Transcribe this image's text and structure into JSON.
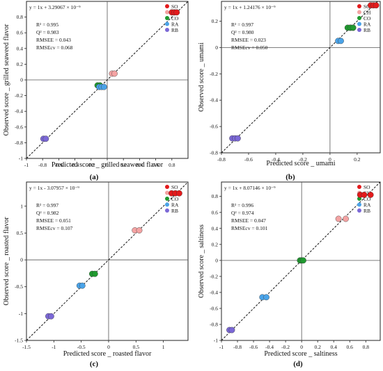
{
  "legend_labels": [
    "SO",
    "CH",
    "CO",
    "RA",
    "RB"
  ],
  "colors": {
    "SO": "#e31a1c",
    "CH": "#f4a3a3",
    "CO": "#1f9a2f",
    "RA": "#4aa3e8",
    "RB": "#7b68d6"
  },
  "chart_data": [
    {
      "type": "scatter",
      "panel_label": "(a)",
      "equation": "y = 1x + 3.29067 × 10⁻⁹",
      "stats": [
        "R² = 0.995",
        "Q² = 0.983",
        "RMSEE = 0.043",
        "RMSEcv = 0.068"
      ],
      "xlabel": "Predicted score _ grilled seaweed flavor",
      "ylabel": "Observed score _ grilled seaweed flavor",
      "xlim": [
        -1.0,
        1.0
      ],
      "ylim": [
        -1.0,
        1.0
      ],
      "xticks": [
        -1.0,
        -0.8,
        -0.6,
        -0.4,
        -0.2,
        0.0,
        0.2,
        0.4,
        0.6,
        0.8
      ],
      "xtick_labels": [
        "-1",
        "-0.8",
        "-0.6",
        "-0.4",
        "-0.2",
        "0",
        "0.2",
        "0.4",
        "0.6",
        "0.8"
      ],
      "yticks": [
        -1.0,
        -0.8,
        -0.6,
        -0.4,
        -0.2,
        0.0,
        0.2,
        0.4,
        0.6,
        0.8
      ],
      "ytick_labels": [
        "-1",
        "-0.8",
        "-0.6",
        "-0.4",
        "-0.2",
        "0",
        "0.2",
        "0.4",
        "0.6",
        "0.8"
      ],
      "series": [
        {
          "name": "SO",
          "x": [
            0.8,
            0.83,
            0.86
          ],
          "y": [
            0.86,
            0.86,
            0.86
          ]
        },
        {
          "name": "CH",
          "x": [
            0.06,
            0.09
          ],
          "y": [
            0.08,
            0.08
          ]
        },
        {
          "name": "CO",
          "x": [
            -0.12,
            -0.09
          ],
          "y": [
            -0.07,
            -0.07
          ]
        },
        {
          "name": "RA",
          "x": [
            -0.1,
            -0.07,
            -0.04
          ],
          "y": [
            -0.09,
            -0.09,
            -0.09
          ]
        },
        {
          "name": "RB",
          "x": [
            -0.79,
            -0.76
          ],
          "y": [
            -0.75,
            -0.75
          ]
        }
      ]
    },
    {
      "type": "scatter",
      "panel_label": "(b)",
      "equation": "y = 1x + 1.24176 × 10⁻⁹",
      "stats": [
        "R² = 0.997",
        "Q² = 0.980",
        "RMSEE = 0.023",
        "RMSEcv = 0.050"
      ],
      "xlabel": "Predicted score _ umami",
      "ylabel": "Observed score _ umami",
      "xlim": [
        -0.8,
        0.37
      ],
      "ylim": [
        -0.8,
        0.35
      ],
      "xticks": [
        -0.8,
        -0.6,
        -0.4,
        -0.2,
        0.0,
        0.2
      ],
      "xtick_labels": [
        "-0.8",
        "-0.6",
        "-0.4",
        "-0.2",
        "0",
        "0.2"
      ],
      "yticks": [
        -0.8,
        -0.6,
        -0.4,
        -0.2,
        0.0,
        0.2
      ],
      "ytick_labels": [
        "-0.8",
        "-0.6",
        "-0.4",
        "-0.2",
        "0",
        "0.2"
      ],
      "series": [
        {
          "name": "SO",
          "x": [
            0.3,
            0.32,
            0.34
          ],
          "y": [
            0.32,
            0.32,
            0.32
          ]
        },
        {
          "name": "CH",
          "x": [
            0.15,
            0.17
          ],
          "y": [
            0.15,
            0.15
          ]
        },
        {
          "name": "CO",
          "x": [
            0.13,
            0.15,
            0.17
          ],
          "y": [
            0.15,
            0.15,
            0.15
          ]
        },
        {
          "name": "RA",
          "x": [
            0.06,
            0.08
          ],
          "y": [
            0.05,
            0.05
          ]
        },
        {
          "name": "RB",
          "x": [
            -0.72,
            -0.7,
            -0.68
          ],
          "y": [
            -0.69,
            -0.69,
            -0.69
          ]
        }
      ]
    },
    {
      "type": "scatter",
      "panel_label": "(c)",
      "equation": "y = 1x - 3.07957 × 10⁻⁹",
      "stats": [
        "R² = 0.997",
        "Q² = 0.982",
        "RMSEE = 0.051",
        "RMSEcv = 0.107"
      ],
      "xlabel": "Predicted score _ roasted flavor",
      "ylabel": "Observed score _ roasted flavor",
      "xlim": [
        -1.5,
        1.45
      ],
      "ylim": [
        -1.5,
        1.45
      ],
      "xticks": [
        -1.5,
        -1.0,
        -0.5,
        0.0,
        0.5,
        1.0
      ],
      "xtick_labels": [
        "-1.5",
        "-1",
        "-0.5",
        "0",
        "0.5",
        "1"
      ],
      "yticks": [
        -1.5,
        -1.0,
        -0.5,
        0.0,
        0.5,
        1.0
      ],
      "ytick_labels": [
        "-1.5",
        "-1",
        "-0.5",
        "0",
        "0.5",
        "1"
      ],
      "series": [
        {
          "name": "SO",
          "x": [
            1.15,
            1.22,
            1.29
          ],
          "y": [
            1.24,
            1.24,
            1.24
          ]
        },
        {
          "name": "CH",
          "x": [
            0.48,
            0.56
          ],
          "y": [
            0.55,
            0.55
          ]
        },
        {
          "name": "CO",
          "x": [
            -0.3,
            -0.25
          ],
          "y": [
            -0.26,
            -0.26
          ]
        },
        {
          "name": "RA",
          "x": [
            -0.53,
            -0.48
          ],
          "y": [
            -0.48,
            -0.48
          ]
        },
        {
          "name": "RB",
          "x": [
            -1.1,
            -1.05
          ],
          "y": [
            -1.05,
            -1.05
          ]
        }
      ]
    },
    {
      "type": "scatter",
      "panel_label": "(d)",
      "equation": "y = 1x + 8.07146 × 10⁻⁹",
      "stats": [
        "R² = 0.996",
        "Q² = 0.974",
        "RMSEE = 0.047",
        "RMSEcv = 0.101"
      ],
      "xlabel": "Predicted score _ saltiness",
      "ylabel": "Observed score _ saltiness",
      "xlim": [
        -1.0,
        0.98
      ],
      "ylim": [
        -1.0,
        0.98
      ],
      "xticks": [
        -1.0,
        -0.8,
        -0.6,
        -0.4,
        -0.2,
        0.0,
        0.2,
        0.4,
        0.6,
        0.8
      ],
      "xtick_labels": [
        "-1",
        "-0.8",
        "-0.6",
        "-0.4",
        "-0.2",
        "0",
        "0.2",
        "0.4",
        "0.6",
        "0.8"
      ],
      "yticks": [
        -1.0,
        -0.8,
        -0.6,
        -0.4,
        -0.2,
        0.0,
        0.2,
        0.4,
        0.6,
        0.8
      ],
      "ytick_labels": [
        "-1",
        "-0.8",
        "-0.6",
        "-0.4",
        "-0.2",
        "0",
        "0.2",
        "0.4",
        "0.6",
        "0.8"
      ],
      "series": [
        {
          "name": "SO",
          "x": [
            0.73,
            0.78,
            0.86
          ],
          "y": [
            0.82,
            0.82,
            0.82
          ]
        },
        {
          "name": "CH",
          "x": [
            0.46,
            0.55
          ],
          "y": [
            0.52,
            0.52
          ]
        },
        {
          "name": "CO",
          "x": [
            -0.02,
            0.0,
            0.02
          ],
          "y": [
            0.0,
            0.0,
            0.0
          ]
        },
        {
          "name": "RA",
          "x": [
            -0.49,
            -0.44
          ],
          "y": [
            -0.46,
            -0.46
          ]
        },
        {
          "name": "RB",
          "x": [
            -0.9,
            -0.87
          ],
          "y": [
            -0.87,
            -0.87
          ]
        }
      ]
    }
  ]
}
